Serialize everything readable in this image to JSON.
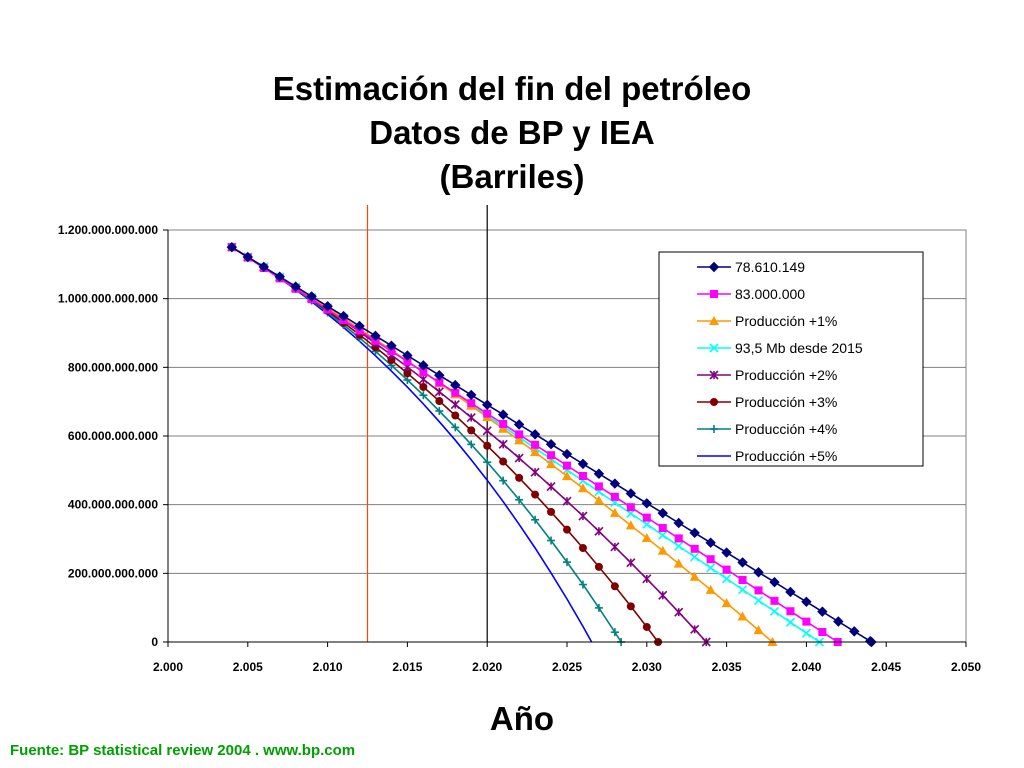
{
  "title": {
    "line1": "Estimación del fin del petróleo",
    "line2": "Datos de BP y IEA",
    "line3": "(Barriles)"
  },
  "xaxis_title": "Año",
  "source": "Fuente: BP statistical review 2004 . www.bp.com",
  "colors": {
    "source_text": "#00a000",
    "grid": "#808080",
    "plot_border": "#808080",
    "vline_red": "#ff4500",
    "vline_black": "#000000"
  },
  "chart_data": {
    "type": "line",
    "title": "Estimación del fin del petróleo Datos de BP y IEA (Barriles)",
    "xlabel": "Año",
    "ylabel": "",
    "xlim": [
      2000,
      2050
    ],
    "ylim": [
      0,
      1200000000000
    ],
    "x_ticks": [
      2000,
      2005,
      2010,
      2015,
      2020,
      2025,
      2030,
      2035,
      2040,
      2045,
      2050
    ],
    "x_tick_labels": [
      "2.000",
      "2.005",
      "2.010",
      "2.015",
      "2.020",
      "2.025",
      "2.030",
      "2.035",
      "2.040",
      "2.045",
      "2.050"
    ],
    "y_ticks": [
      0,
      200000000000,
      400000000000,
      600000000000,
      800000000000,
      1000000000000,
      1200000000000
    ],
    "y_tick_labels": [
      "0",
      "200.000.000.000",
      "400.000.000.000",
      "600.000.000.000",
      "800.000.000.000",
      "1.000.000.000.000",
      "1.200.000.000.000"
    ],
    "grid": "horizontal",
    "legend_position": "top-right",
    "vertical_lines": [
      {
        "x": 2012.5,
        "color": "#ff4500"
      },
      {
        "x": 2020,
        "color": "#000000"
      }
    ],
    "initial_reserves": 1150000000000,
    "start_year": 2004,
    "series": [
      {
        "name": "78.610.149",
        "color": "#00007f",
        "marker": "diamond",
        "base_annual": 28692704385,
        "growth": 0,
        "plateau_from": null
      },
      {
        "name": "83.000.000",
        "color": "#ff00ff",
        "marker": "square",
        "base_annual": 30295000000,
        "growth": 0,
        "plateau_from": null
      },
      {
        "name": "Producción +1%",
        "color": "#ff9900",
        "marker": "triangle",
        "base_annual": 28692704385,
        "growth": 0.01,
        "plateau_from": null
      },
      {
        "name": "93,5 Mb desde 2015",
        "color": "#00ffff",
        "marker": "x",
        "base_annual": 28692704385,
        "growth": 0.01,
        "plateau_from": 2015
      },
      {
        "name": "Producción +2%",
        "color": "#800080",
        "marker": "star",
        "base_annual": 28692704385,
        "growth": 0.02,
        "plateau_from": null
      },
      {
        "name": "Producción +3%",
        "color": "#800000",
        "marker": "circle",
        "base_annual": 28692704385,
        "growth": 0.03,
        "plateau_from": null
      },
      {
        "name": "Producción +4%",
        "color": "#008080",
        "marker": "plus",
        "base_annual": 28692704385,
        "growth": 0.04,
        "plateau_from": null
      },
      {
        "name": "Producción +5%",
        "color": "#0000ff",
        "marker": "none",
        "base_annual": 28692704385,
        "growth": 0.05,
        "plateau_from": null
      }
    ]
  }
}
